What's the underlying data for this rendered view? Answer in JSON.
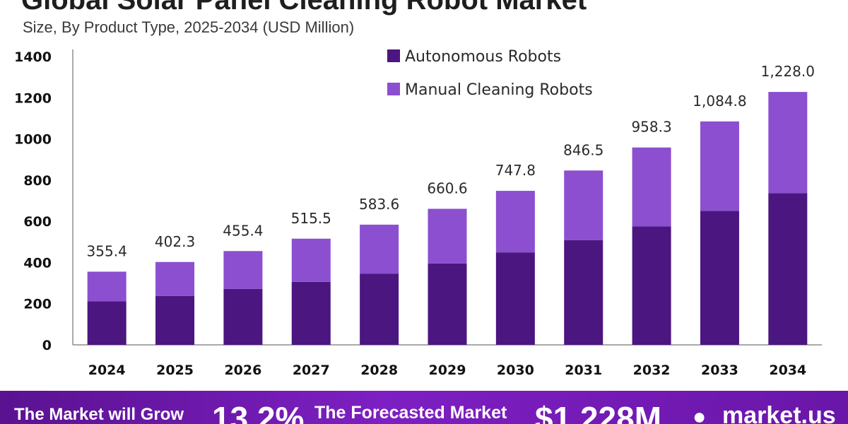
{
  "header": {
    "title": "Global Solar Panel Cleaning Robot Market",
    "subtitle": "Size, By Product Type, 2025-2034 (USD Million)"
  },
  "chart_data": {
    "type": "bar",
    "stacked": true,
    "categories": [
      "2024",
      "2025",
      "2026",
      "2027",
      "2028",
      "2029",
      "2030",
      "2031",
      "2032",
      "2033",
      "2034"
    ],
    "series": [
      {
        "name": "Autonomous Robots",
        "color": "#4b1680",
        "values": [
          212,
          237,
          272,
          306,
          346,
          395,
          449,
          508,
          575,
          651,
          737
        ]
      },
      {
        "name": "Manual Cleaning Robots",
        "color": "#8b4fd0",
        "values": [
          143.4,
          165.3,
          183.4,
          209.5,
          237.6,
          265.6,
          298.8,
          338.5,
          383.3,
          433.8,
          491.0
        ]
      }
    ],
    "totals": [
      "355.4",
      "402.3",
      "455.4",
      "515.5",
      "583.6",
      "660.6",
      "747.8",
      "846.5",
      "958.3",
      "1,084.8",
      "1,228.0"
    ],
    "ylim": [
      0,
      1400
    ],
    "yticks": [
      "0",
      "200",
      "400",
      "600",
      "800",
      "1000",
      "1200",
      "1400"
    ],
    "xlabel": "",
    "ylabel": "",
    "grid": false,
    "legend_position": "top-right"
  },
  "banner": {
    "grow_text": "The Market will Grow",
    "rate": "13.2%",
    "forecast_text": "The Forecasted Market",
    "value": "$1,228M",
    "logo_text": "market.us"
  }
}
